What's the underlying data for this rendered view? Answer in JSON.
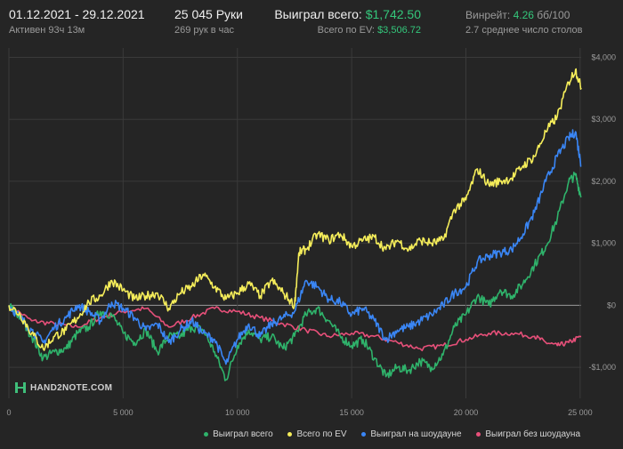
{
  "header": {
    "period": "01.12.2021 - 29.12.2021",
    "active": "Активен 93ч 13м",
    "hands": "25 045 Руки",
    "hands_per_hour": "269 рук в час",
    "won_label": "Выиграл всего:",
    "won_value": "$1,742.50",
    "ev_label": "Всего по EV:",
    "ev_value": "$3,506.72",
    "winrate_label": "Винрейт:",
    "winrate_value": "4.26",
    "winrate_unit": "бб/100",
    "tables": "2.7 среднее число столов"
  },
  "logo_text": "HAND2NOTE.COM",
  "colors": {
    "background": "#252525",
    "grid": "#3a3a3a",
    "zero_line": "#9a9a9a",
    "positive": "#34c77b"
  },
  "chart_data": {
    "type": "line",
    "xlim": [
      0,
      25045
    ],
    "ylim": [
      -1500,
      4150
    ],
    "x_ticks": [
      0,
      5000,
      10000,
      15000,
      20000,
      25000
    ],
    "x_tick_labels": [
      "0",
      "5 000",
      "10 000",
      "15 000",
      "20 000",
      "25 000"
    ],
    "y_ticks": [
      -1000,
      0,
      1000,
      2000,
      3000,
      4000
    ],
    "y_tick_labels": [
      "-$1,000",
      "$0",
      "$1,000",
      "$2,000",
      "$3,000",
      "$4,000"
    ],
    "grid": true,
    "legend": "bottom-right",
    "series": [
      {
        "name": "Выиграл всего",
        "color": "#2fb36b",
        "points": [
          [
            0,
            0
          ],
          [
            500,
            -200
          ],
          [
            1000,
            -500
          ],
          [
            1500,
            -850
          ],
          [
            2000,
            -750
          ],
          [
            2500,
            -700
          ],
          [
            3000,
            -450
          ],
          [
            3500,
            -350
          ],
          [
            4000,
            -100
          ],
          [
            4500,
            -150
          ],
          [
            5000,
            -450
          ],
          [
            5500,
            -600
          ],
          [
            6000,
            -400
          ],
          [
            6500,
            -750
          ],
          [
            7000,
            -500
          ],
          [
            7500,
            -500
          ],
          [
            8000,
            -350
          ],
          [
            8500,
            -400
          ],
          [
            9000,
            -750
          ],
          [
            9500,
            -1200
          ],
          [
            10000,
            -650
          ],
          [
            10500,
            -400
          ],
          [
            11000,
            -550
          ],
          [
            11500,
            -500
          ],
          [
            12000,
            -700
          ],
          [
            12500,
            -500
          ],
          [
            13000,
            -150
          ],
          [
            13500,
            -50
          ],
          [
            14000,
            -250
          ],
          [
            14500,
            -500
          ],
          [
            15000,
            -650
          ],
          [
            15500,
            -550
          ],
          [
            16000,
            -850
          ],
          [
            16500,
            -1150
          ],
          [
            17000,
            -1000
          ],
          [
            17500,
            -1050
          ],
          [
            18000,
            -900
          ],
          [
            18500,
            -1000
          ],
          [
            19000,
            -800
          ],
          [
            19500,
            -350
          ],
          [
            20000,
            -150
          ],
          [
            20500,
            150
          ],
          [
            21000,
            0
          ],
          [
            21500,
            250
          ],
          [
            22000,
            150
          ],
          [
            22500,
            350
          ],
          [
            23000,
            650
          ],
          [
            23500,
            950
          ],
          [
            24000,
            1400
          ],
          [
            24500,
            2000
          ],
          [
            24800,
            2100
          ],
          [
            25045,
            1742
          ]
        ]
      },
      {
        "name": "Всего по EV",
        "color": "#f5ed5a",
        "points": [
          [
            0,
            0
          ],
          [
            500,
            -150
          ],
          [
            1000,
            -450
          ],
          [
            1500,
            -700
          ],
          [
            2000,
            -500
          ],
          [
            2500,
            -400
          ],
          [
            3000,
            -200
          ],
          [
            3500,
            50
          ],
          [
            4000,
            150
          ],
          [
            4500,
            400
          ],
          [
            5000,
            250
          ],
          [
            5500,
            100
          ],
          [
            6000,
            150
          ],
          [
            6500,
            200
          ],
          [
            7000,
            -50
          ],
          [
            7500,
            200
          ],
          [
            8000,
            300
          ],
          [
            8500,
            500
          ],
          [
            9000,
            300
          ],
          [
            9500,
            100
          ],
          [
            10000,
            200
          ],
          [
            10500,
            350
          ],
          [
            11000,
            150
          ],
          [
            11500,
            400
          ],
          [
            12000,
            200
          ],
          [
            12500,
            0
          ],
          [
            12700,
            850
          ],
          [
            13000,
            900
          ],
          [
            13500,
            1150
          ],
          [
            14000,
            1050
          ],
          [
            14500,
            1150
          ],
          [
            15000,
            950
          ],
          [
            15500,
            1050
          ],
          [
            16000,
            1100
          ],
          [
            16500,
            900
          ],
          [
            17000,
            1050
          ],
          [
            17500,
            900
          ],
          [
            18000,
            1050
          ],
          [
            18500,
            1000
          ],
          [
            19000,
            1050
          ],
          [
            19500,
            1550
          ],
          [
            20000,
            1700
          ],
          [
            20500,
            2200
          ],
          [
            21000,
            1950
          ],
          [
            21500,
            2000
          ],
          [
            22000,
            2050
          ],
          [
            22500,
            2250
          ],
          [
            23000,
            2400
          ],
          [
            23500,
            2800
          ],
          [
            24000,
            3050
          ],
          [
            24500,
            3600
          ],
          [
            24800,
            3800
          ],
          [
            25045,
            3506
          ]
        ]
      },
      {
        "name": "Выиграл на шоудауне",
        "color": "#3a86f5",
        "points": [
          [
            0,
            0
          ],
          [
            500,
            -200
          ],
          [
            1000,
            -400
          ],
          [
            1500,
            -600
          ],
          [
            2000,
            -350
          ],
          [
            2500,
            -200
          ],
          [
            3000,
            0
          ],
          [
            3500,
            -100
          ],
          [
            4000,
            -250
          ],
          [
            4500,
            50
          ],
          [
            5000,
            -50
          ],
          [
            5500,
            -200
          ],
          [
            6000,
            -400
          ],
          [
            6500,
            -300
          ],
          [
            7000,
            -600
          ],
          [
            7500,
            -400
          ],
          [
            8000,
            -250
          ],
          [
            8500,
            -450
          ],
          [
            9000,
            -550
          ],
          [
            9500,
            -950
          ],
          [
            10000,
            -550
          ],
          [
            10500,
            -300
          ],
          [
            11000,
            -500
          ],
          [
            11500,
            -300
          ],
          [
            12000,
            -200
          ],
          [
            12500,
            -100
          ],
          [
            13000,
            400
          ],
          [
            13500,
            300
          ],
          [
            14000,
            100
          ],
          [
            14500,
            50
          ],
          [
            15000,
            -150
          ],
          [
            15500,
            -50
          ],
          [
            16000,
            -250
          ],
          [
            16500,
            -550
          ],
          [
            17000,
            -400
          ],
          [
            17500,
            -350
          ],
          [
            18000,
            -250
          ],
          [
            18500,
            -150
          ],
          [
            19000,
            0
          ],
          [
            19500,
            200
          ],
          [
            20000,
            300
          ],
          [
            20500,
            700
          ],
          [
            21000,
            800
          ],
          [
            21500,
            850
          ],
          [
            22000,
            900
          ],
          [
            22500,
            1150
          ],
          [
            23000,
            1500
          ],
          [
            23500,
            2000
          ],
          [
            24000,
            2400
          ],
          [
            24500,
            2700
          ],
          [
            24800,
            2800
          ],
          [
            25045,
            2250
          ]
        ]
      },
      {
        "name": "Выиграл без шоудауна",
        "color": "#e8507a",
        "points": [
          [
            0,
            0
          ],
          [
            1000,
            -250
          ],
          [
            2000,
            -300
          ],
          [
            3000,
            -350
          ],
          [
            4000,
            -200
          ],
          [
            5000,
            -100
          ],
          [
            6000,
            -50
          ],
          [
            7000,
            -350
          ],
          [
            8000,
            -200
          ],
          [
            9000,
            -50
          ],
          [
            10000,
            -100
          ],
          [
            11000,
            -200
          ],
          [
            12000,
            -300
          ],
          [
            13000,
            -400
          ],
          [
            14000,
            -500
          ],
          [
            15000,
            -450
          ],
          [
            16000,
            -500
          ],
          [
            17000,
            -600
          ],
          [
            18000,
            -700
          ],
          [
            19000,
            -650
          ],
          [
            20000,
            -550
          ],
          [
            21000,
            -450
          ],
          [
            22000,
            -450
          ],
          [
            23000,
            -500
          ],
          [
            23500,
            -600
          ],
          [
            24000,
            -650
          ],
          [
            24500,
            -600
          ],
          [
            25045,
            -500
          ]
        ]
      }
    ]
  }
}
